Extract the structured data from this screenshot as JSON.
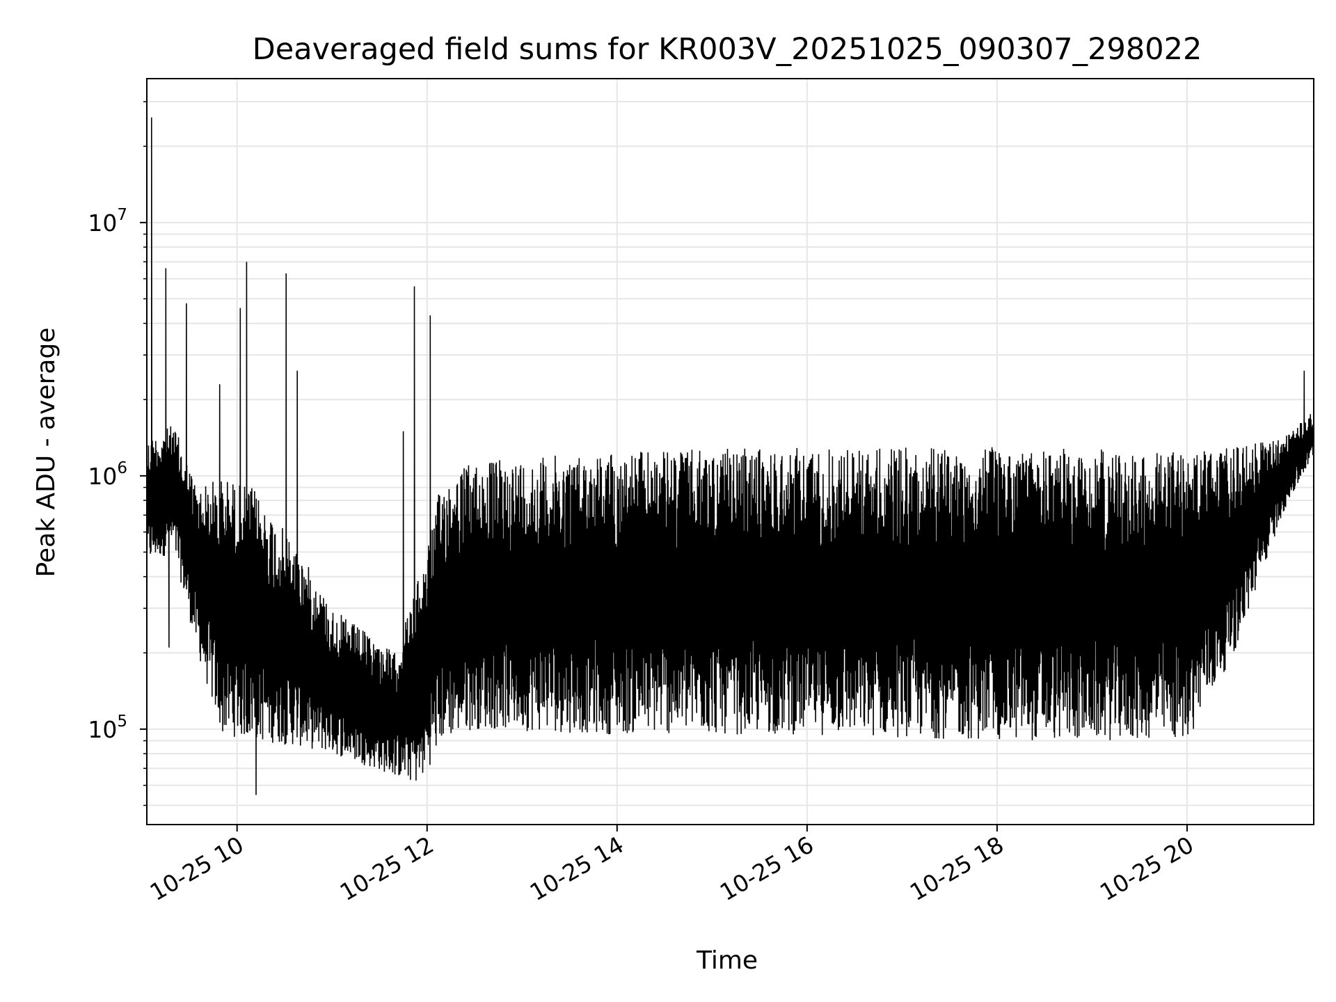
{
  "chart_data": {
    "type": "line",
    "title": "Deaveraged field sums for KR003V_20251025_090307_298022",
    "xlabel": "Time",
    "ylabel": "Peak ADU - average",
    "y_scale": "log",
    "grid": true,
    "line_color": "#000000",
    "grid_color": "#e6e6e6",
    "xlim": [
      "2025-10-25 09:03",
      "2025-10-25 21:20"
    ],
    "ylim": [
      42000,
      37000000
    ],
    "x_ticks": [
      {
        "time": "2025-10-25 10:00",
        "label": "10-25 10"
      },
      {
        "time": "2025-10-25 12:00",
        "label": "10-25 12"
      },
      {
        "time": "2025-10-25 14:00",
        "label": "10-25 14"
      },
      {
        "time": "2025-10-25 16:00",
        "label": "10-25 16"
      },
      {
        "time": "2025-10-25 18:00",
        "label": "10-25 18"
      },
      {
        "time": "2025-10-25 20:00",
        "label": "10-25 20"
      }
    ],
    "y_ticks": [
      {
        "value": 100000,
        "base": "10",
        "exp": "5"
      },
      {
        "value": 1000000,
        "base": "10",
        "exp": "6"
      },
      {
        "value": 10000000,
        "base": "10",
        "exp": "7"
      }
    ],
    "envelope": [
      {
        "time": "2025-10-25 09:03",
        "low": 450000,
        "high": 1400000
      },
      {
        "time": "2025-10-25 09:20",
        "low": 500000,
        "high": 1600000
      },
      {
        "time": "2025-10-25 09:35",
        "low": 200000,
        "high": 900000
      },
      {
        "time": "2025-10-25 09:50",
        "low": 95000,
        "high": 1000000
      },
      {
        "time": "2025-10-25 10:10",
        "low": 90000,
        "high": 900000
      },
      {
        "time": "2025-10-25 10:40",
        "low": 85000,
        "high": 500000
      },
      {
        "time": "2025-10-25 11:00",
        "low": 80000,
        "high": 300000
      },
      {
        "time": "2025-10-25 11:40",
        "low": 65000,
        "high": 200000
      },
      {
        "time": "2025-10-25 11:55",
        "low": 60000,
        "high": 400000
      },
      {
        "time": "2025-10-25 12:10",
        "low": 90000,
        "high": 1000000
      },
      {
        "time": "2025-10-25 12:30",
        "low": 100000,
        "high": 1150000
      },
      {
        "time": "2025-10-25 14:00",
        "low": 95000,
        "high": 1250000
      },
      {
        "time": "2025-10-25 16:00",
        "low": 95000,
        "high": 1300000
      },
      {
        "time": "2025-10-25 18:00",
        "low": 90000,
        "high": 1300000
      },
      {
        "time": "2025-10-25 20:00",
        "low": 90000,
        "high": 1250000
      },
      {
        "time": "2025-10-25 20:30",
        "low": 200000,
        "high": 1300000
      },
      {
        "time": "2025-10-25 21:00",
        "low": 700000,
        "high": 1400000
      },
      {
        "time": "2025-10-25 21:20",
        "low": 1200000,
        "high": 1800000
      }
    ],
    "spikes": [
      {
        "time": "2025-10-25 09:06",
        "value": 26000000
      },
      {
        "time": "2025-10-25 09:15",
        "value": 6600000
      },
      {
        "time": "2025-10-25 09:17",
        "value": 210000
      },
      {
        "time": "2025-10-25 09:28",
        "value": 4800000
      },
      {
        "time": "2025-10-25 09:49",
        "value": 2300000
      },
      {
        "time": "2025-10-25 10:02",
        "value": 4600000
      },
      {
        "time": "2025-10-25 10:06",
        "value": 7000000
      },
      {
        "time": "2025-10-25 10:31",
        "value": 6300000
      },
      {
        "time": "2025-10-25 10:38",
        "value": 2600000
      },
      {
        "time": "2025-10-25 10:12",
        "value": 55000
      },
      {
        "time": "2025-10-25 11:52",
        "value": 5600000
      },
      {
        "time": "2025-10-25 12:02",
        "value": 4300000
      },
      {
        "time": "2025-10-25 11:45",
        "value": 1500000
      },
      {
        "time": "2025-10-25 21:14",
        "value": 2600000
      }
    ]
  }
}
